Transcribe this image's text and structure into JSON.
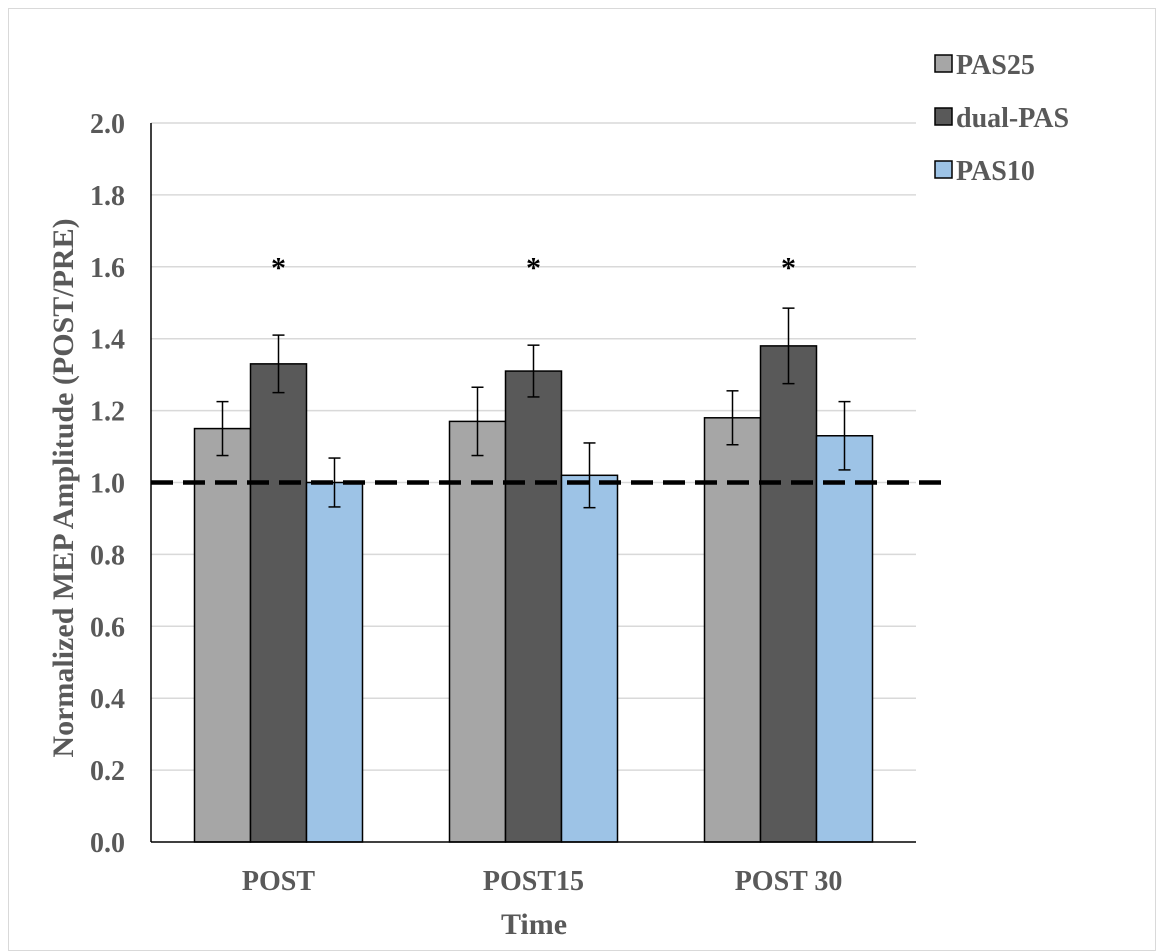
{
  "chart_data": {
    "type": "bar",
    "title": "",
    "xlabel": "Time",
    "ylabel": "Normalized MEP Amplitude  (POST/PRE)",
    "categories": [
      "POST",
      "POST15",
      "POST 30"
    ],
    "series": [
      {
        "name": "PAS25",
        "color": "#a6a6a6",
        "values": [
          1.15,
          1.17,
          1.18
        ],
        "errors": [
          0.075,
          0.095,
          0.075
        ]
      },
      {
        "name": "dual-PAS",
        "color": "#595959",
        "values": [
          1.33,
          1.31,
          1.38
        ],
        "errors": [
          0.08,
          0.072,
          0.105
        ]
      },
      {
        "name": "PAS10",
        "color": "#9dc3e6",
        "values": [
          1.0,
          1.02,
          1.13
        ],
        "errors": [
          0.068,
          0.09,
          0.095
        ]
      }
    ],
    "ylim": [
      0,
      2.0
    ],
    "yticks": [
      "0.0",
      "0.2",
      "0.4",
      "0.6",
      "0.8",
      "1.0",
      "1.2",
      "1.4",
      "1.6",
      "1.8",
      "2.0"
    ],
    "reference_line": 1.0,
    "annotations": [
      {
        "text": "*",
        "category": "POST",
        "y": 1.62
      },
      {
        "text": "*",
        "category": "POST15",
        "y": 1.62
      },
      {
        "text": "*",
        "category": "POST 30",
        "y": 1.62
      }
    ],
    "grid": true,
    "legend_position": "top-right"
  }
}
